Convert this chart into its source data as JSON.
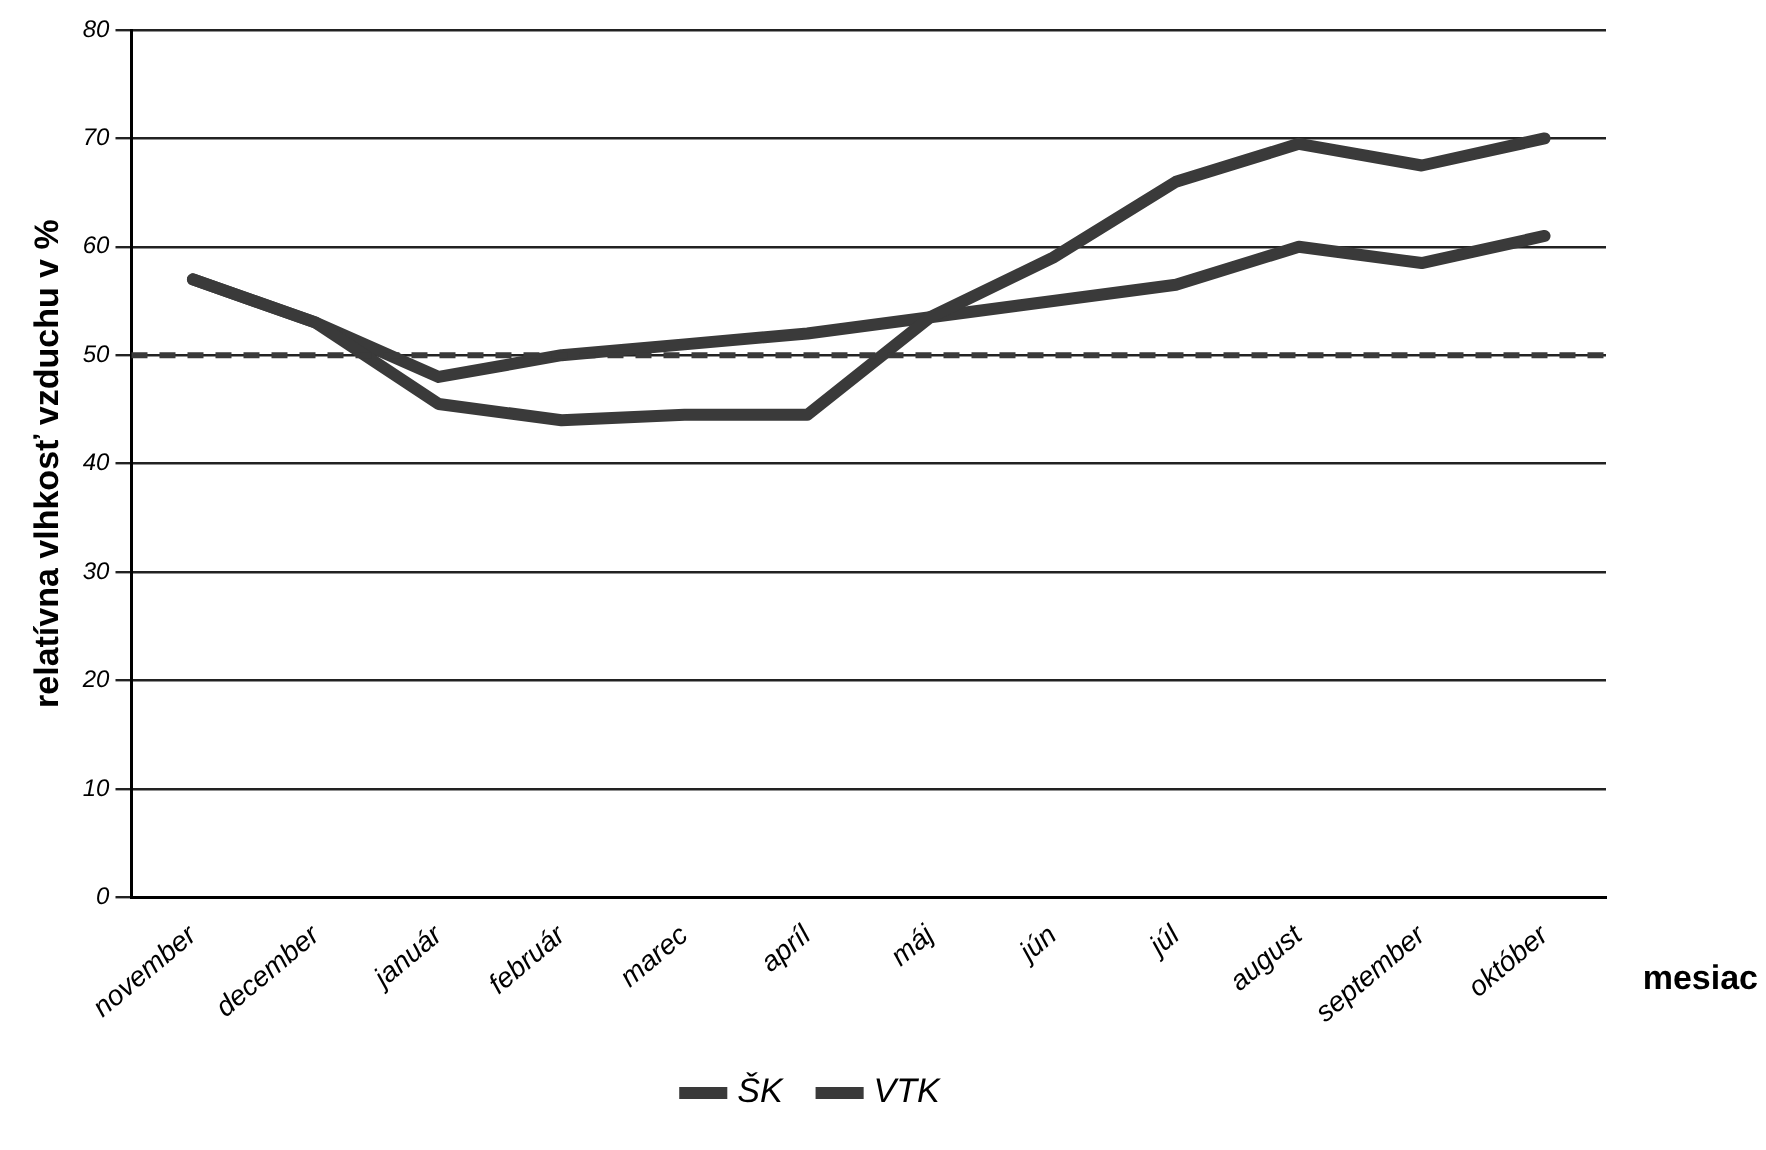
{
  "chart_data": {
    "type": "line",
    "ylabel": "relatívna vlhkosť vzduchu v %",
    "xlabel": "mesiac",
    "categories": [
      "november",
      "december",
      "január",
      "február",
      "marec",
      "apríl",
      "máj",
      "jún",
      "júl",
      "august",
      "september",
      "október"
    ],
    "series": [
      {
        "name": "ŠK",
        "color": "#3a3a3a",
        "values": [
          57,
          53,
          45.5,
          44,
          44.5,
          44.5,
          53.5,
          59,
          66,
          69.5,
          67.5,
          70
        ]
      },
      {
        "name": "VTK",
        "color": "#3a3a3a",
        "values": [
          57,
          53,
          48,
          50,
          51,
          52,
          53.5,
          55,
          56.5,
          60,
          58.5,
          61
        ]
      }
    ],
    "ylim": [
      0,
      80
    ],
    "yticks": [
      0,
      10,
      20,
      30,
      40,
      50,
      60,
      70,
      80
    ],
    "grid": "y",
    "legend": "bottom",
    "marker": "none",
    "line_style": "solid",
    "ref_lines": [
      {
        "axis": "y",
        "value": 50,
        "line_style": "dashed",
        "color": "#3a3a3a"
      }
    ]
  }
}
